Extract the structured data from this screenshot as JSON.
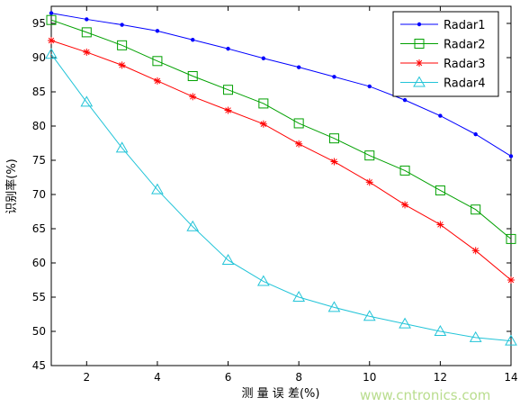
{
  "chart_data": {
    "type": "line",
    "xlabel": "测 量 误 差(%)",
    "ylabel": "识别率(%)",
    "xlim": [
      1,
      14
    ],
    "ylim": [
      45,
      97.5
    ],
    "xticks": [
      2,
      4,
      6,
      8,
      10,
      12,
      14
    ],
    "yticks": [
      45,
      50,
      55,
      60,
      65,
      70,
      75,
      80,
      85,
      90,
      95
    ],
    "grid": false,
    "legend_position": "top-right",
    "x": [
      1,
      2,
      3,
      4,
      5,
      6,
      7,
      8,
      9,
      10,
      11,
      12,
      13,
      14
    ],
    "series": [
      {
        "name": "Radar1",
        "color": "#0000ff",
        "marker": "dot",
        "values": [
          96.5,
          95.6,
          94.8,
          93.9,
          92.6,
          91.3,
          89.9,
          88.6,
          87.2,
          85.8,
          83.8,
          81.5,
          78.8,
          75.6
        ]
      },
      {
        "name": "Radar2",
        "color": "#00a000",
        "marker": "square",
        "values": [
          95.5,
          93.7,
          91.8,
          89.5,
          87.3,
          85.3,
          83.3,
          80.4,
          78.2,
          75.7,
          73.5,
          70.6,
          67.8,
          63.5
        ]
      },
      {
        "name": "Radar3",
        "color": "#ff0000",
        "marker": "star",
        "values": [
          92.5,
          90.8,
          88.9,
          86.6,
          84.3,
          82.3,
          80.3,
          77.4,
          74.8,
          71.8,
          68.5,
          65.6,
          61.8,
          57.5
        ]
      },
      {
        "name": "Radar4",
        "color": "#22c4d8",
        "marker": "triangle",
        "values": [
          90.5,
          83.5,
          76.8,
          70.7,
          65.3,
          60.4,
          57.3,
          55.0,
          53.5,
          52.2,
          51.1,
          50.0,
          49.1,
          48.6
        ]
      }
    ]
  },
  "watermark": "www.cntronics.com"
}
